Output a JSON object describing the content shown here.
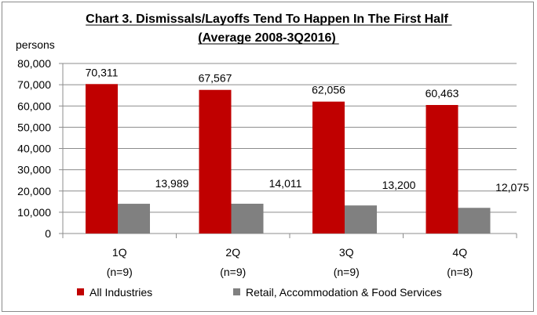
{
  "chart_data": {
    "type": "bar",
    "title": "Chart 3. Dismissals/Layoffs Tend To Happen In The First Half",
    "subtitle": "(Average 2008-3Q2016)",
    "ylabel": "persons",
    "xlabel": "",
    "ylim": [
      0,
      80000
    ],
    "yticks": [
      0,
      10000,
      20000,
      30000,
      40000,
      50000,
      60000,
      70000,
      80000
    ],
    "ytick_labels": [
      "0",
      "10,000",
      "20,000",
      "30,000",
      "40,000",
      "50,000",
      "60,000",
      "70,000",
      "80,000"
    ],
    "categories": [
      "1Q",
      "2Q",
      "3Q",
      "4Q"
    ],
    "category_sublabels": [
      "(n=9)",
      "(n=9)",
      "(n=9)",
      "(n=8)"
    ],
    "series": [
      {
        "name": "All Industries",
        "color": "#c00000",
        "values": [
          70311,
          67567,
          62056,
          60463
        ],
        "value_labels": [
          "70,311",
          "67,567",
          "62,056",
          "60,463"
        ]
      },
      {
        "name": "Retail, Accommodation & Food Services",
        "color": "#808080",
        "values": [
          13989,
          14011,
          13200,
          12075
        ],
        "value_labels": [
          "13,989",
          "14,011",
          "13,200",
          "12,075"
        ]
      }
    ],
    "grid": true,
    "legend_position": "bottom"
  }
}
